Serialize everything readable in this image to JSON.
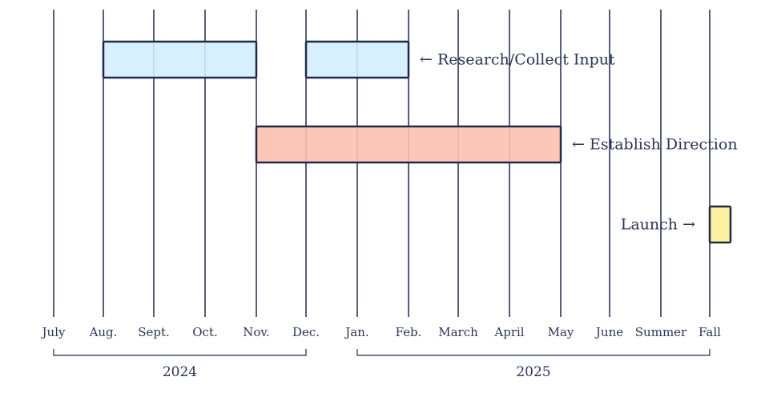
{
  "chart_data": {
    "type": "gantt",
    "months": [
      "July",
      "Aug.",
      "Sept.",
      "Oct.",
      "Nov.",
      "Dec.",
      "Jan.",
      "Feb.",
      "March",
      "April",
      "May",
      "June",
      "Summer",
      "Fall"
    ],
    "years": [
      {
        "label": "2024",
        "from": "July",
        "to": "Dec."
      },
      {
        "label": "2025",
        "from": "Jan.",
        "to": "Fall"
      }
    ],
    "tasks": [
      {
        "name": "Research/Collect Input",
        "label": "← Research/Collect Input",
        "label_side": "right",
        "color": "#d7efff",
        "segments": [
          {
            "start": "Aug.",
            "end": "Nov."
          },
          {
            "start": "Dec.",
            "end": "Feb."
          }
        ]
      },
      {
        "name": "Establish Direction",
        "label": "← Establish Direction",
        "label_side": "right",
        "color": "#fcc7b8",
        "segments": [
          {
            "start": "Nov.",
            "end": "May"
          }
        ]
      },
      {
        "name": "Launch",
        "label": "Launch →",
        "label_side": "left",
        "color": "#faf0a0",
        "segments": [
          {
            "start": "Fall",
            "end": "Fall+"
          }
        ]
      }
    ],
    "colors": {
      "ink": "#25304f",
      "line": "#1f2a4a"
    }
  }
}
